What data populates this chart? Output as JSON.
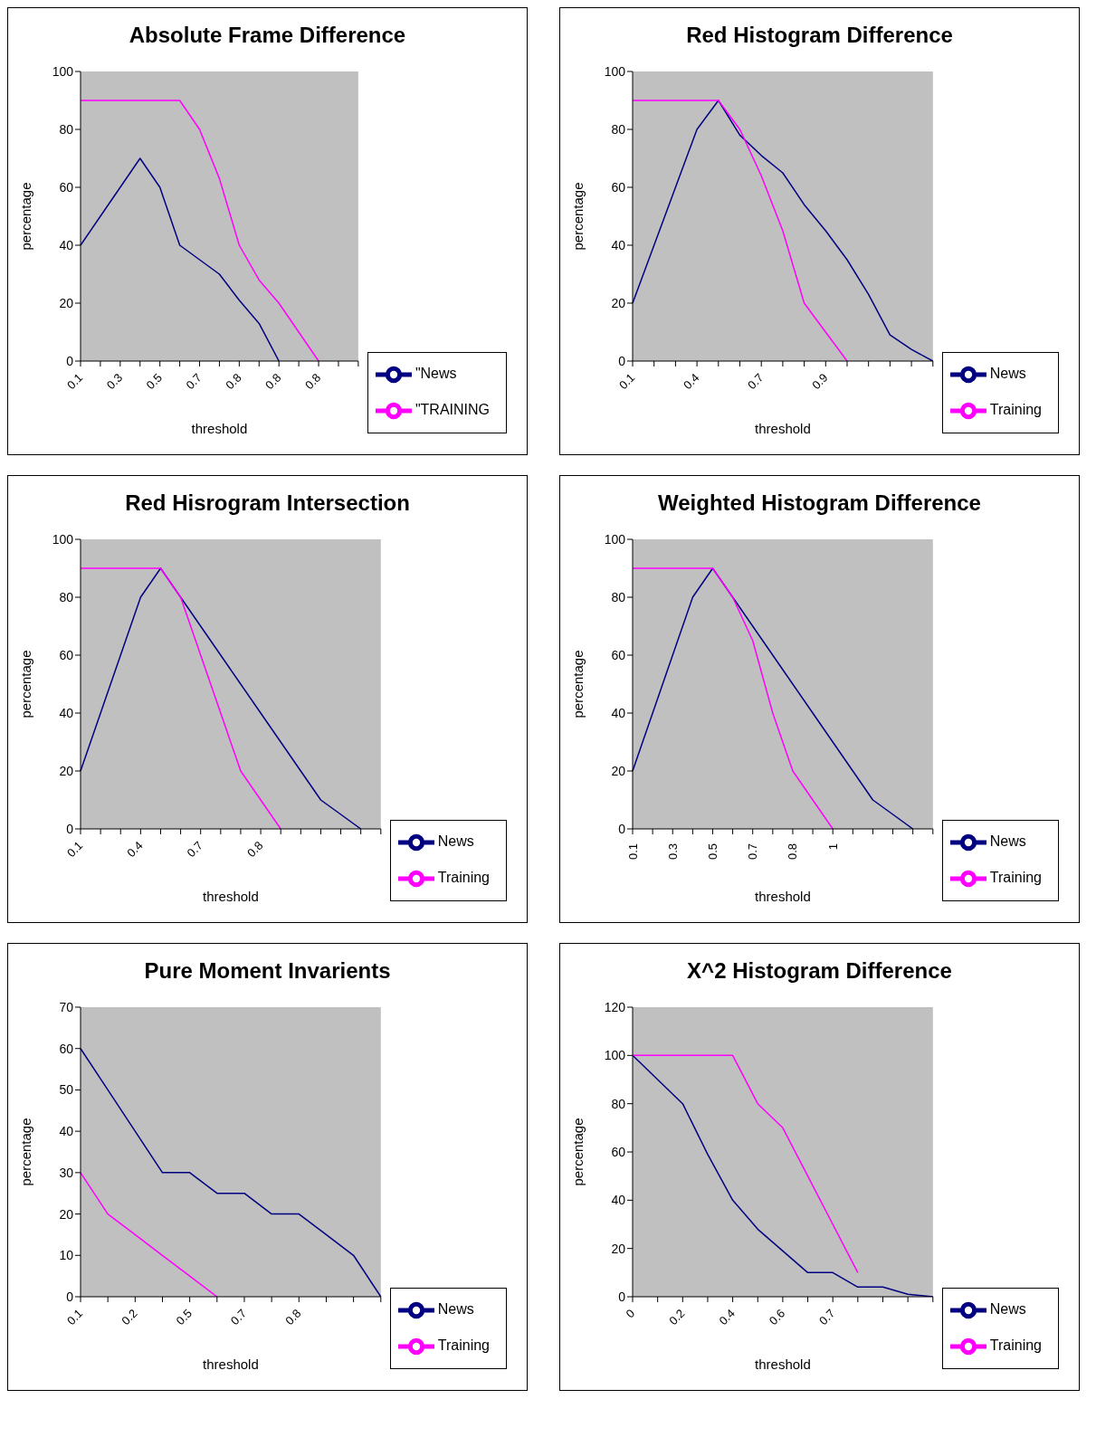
{
  "chart_data": [
    {
      "type": "line",
      "title": "Absolute Frame Difference",
      "xlabel": "threshold",
      "ylabel": "percentage",
      "categories": [
        "0.1",
        null,
        "0.3",
        null,
        "0.5",
        null,
        "0.7",
        null,
        "0.8",
        null,
        "0.8",
        null,
        "0.8",
        null,
        null
      ],
      "series": [
        {
          "name": "\"News",
          "color": "#000080",
          "values": [
            40,
            50,
            60,
            70,
            60,
            40,
            35,
            30,
            21,
            13,
            0,
            null,
            null,
            null,
            null
          ]
        },
        {
          "name": "\"TRAINING",
          "color": "#ff00ff",
          "values": [
            90,
            90,
            90,
            90,
            90,
            90,
            80,
            63,
            40,
            28,
            20,
            10,
            0,
            null,
            null
          ]
        }
      ],
      "ylim": [
        0,
        100
      ],
      "yticks": [
        0,
        20,
        40,
        60,
        80,
        100
      ],
      "grid": false,
      "legend": "bottom right"
    },
    {
      "type": "line",
      "title": "Red Histogram Difference",
      "xlabel": "threshold",
      "ylabel": "percentage",
      "categories": [
        "0.1",
        null,
        null,
        "0.4",
        null,
        null,
        "0.7",
        null,
        null,
        "0.9",
        null,
        null,
        null,
        null,
        null
      ],
      "series": [
        {
          "name": "News",
          "color": "#000080",
          "values": [
            20,
            40,
            60,
            80,
            90,
            78,
            71,
            65,
            54,
            45,
            35,
            23,
            9,
            4,
            0
          ]
        },
        {
          "name": "Training",
          "color": "#ff00ff",
          "values": [
            90,
            90,
            90,
            90,
            90,
            80,
            64,
            45,
            20,
            10,
            0,
            null,
            null,
            null,
            null
          ]
        }
      ],
      "ylim": [
        0,
        100
      ],
      "yticks": [
        0,
        20,
        40,
        60,
        80,
        100
      ],
      "grid": false,
      "legend": "bottom right"
    },
    {
      "type": "line",
      "title": "Red Hisrogram Intersection",
      "xlabel": "threshold",
      "ylabel": "percentage",
      "categories": [
        "0.1",
        null,
        null,
        "0.4",
        null,
        null,
        "0.7",
        null,
        null,
        "0.8",
        null,
        null,
        null,
        null,
        null,
        null
      ],
      "series": [
        {
          "name": "News",
          "color": "#000080",
          "values": [
            20,
            40,
            60,
            80,
            90,
            80,
            70,
            60,
            50,
            40,
            30,
            20,
            10,
            5,
            0,
            null
          ]
        },
        {
          "name": "Training",
          "color": "#ff00ff",
          "values": [
            90,
            90,
            90,
            90,
            90,
            80,
            60,
            40,
            20,
            10,
            0,
            null,
            null,
            null,
            null,
            null
          ]
        }
      ],
      "ylim": [
        0,
        100
      ],
      "yticks": [
        0,
        20,
        40,
        60,
        80,
        100
      ],
      "grid": false,
      "legend": "bottom right"
    },
    {
      "type": "line",
      "title": "Weighted Histogram Difference",
      "xlabel": "threshold",
      "ylabel": "percentage",
      "categories": [
        "0.1",
        null,
        "0.3",
        null,
        "0.5",
        null,
        "0.7",
        null,
        "0.8",
        null,
        "1",
        null,
        null,
        null,
        null,
        null
      ],
      "series": [
        {
          "name": "News",
          "color": "#000080",
          "values": [
            20,
            40,
            60,
            80,
            90,
            80,
            70,
            60,
            50,
            40,
            30,
            20,
            10,
            5,
            0,
            null
          ]
        },
        {
          "name": "Training",
          "color": "#ff00ff",
          "values": [
            90,
            90,
            90,
            90,
            90,
            80,
            65,
            40,
            20,
            10,
            0,
            null,
            null,
            null,
            null,
            null
          ]
        }
      ],
      "ylim": [
        0,
        100
      ],
      "yticks": [
        0,
        20,
        40,
        60,
        80,
        100
      ],
      "grid": false,
      "legend": "bottom right"
    },
    {
      "type": "line",
      "title": "Pure Moment Invarients",
      "xlabel": "threshold",
      "ylabel": "percentage",
      "categories": [
        "0.1",
        null,
        "0.2",
        null,
        "0.5",
        null,
        "0.7",
        null,
        "0.8",
        null,
        null,
        null
      ],
      "series": [
        {
          "name": "News",
          "color": "#000080",
          "values": [
            60,
            50,
            40,
            30,
            30,
            25,
            25,
            20,
            20,
            15,
            10,
            0
          ]
        },
        {
          "name": "Training",
          "color": "#ff00ff",
          "values": [
            30,
            20,
            15,
            10,
            5,
            0,
            null,
            null,
            null,
            null,
            null,
            null
          ]
        }
      ],
      "ylim": [
        0,
        70
      ],
      "yticks": [
        0,
        10,
        20,
        30,
        40,
        50,
        60,
        70
      ],
      "grid": false,
      "legend": "bottom right"
    },
    {
      "type": "line",
      "title": "X^2 Histogram Difference",
      "xlabel": "threshold",
      "ylabel": "percentage",
      "categories": [
        "0",
        null,
        "0.2",
        null,
        "0.4",
        null,
        "0.6",
        null,
        "0.7",
        null,
        null,
        null,
        null
      ],
      "series": [
        {
          "name": "News",
          "color": "#000080",
          "values": [
            100,
            90,
            80,
            59,
            40,
            28,
            19,
            10,
            10,
            4,
            4,
            1,
            0
          ]
        },
        {
          "name": "Training",
          "color": "#ff00ff",
          "values": [
            100,
            100,
            100,
            100,
            100,
            80,
            70,
            50,
            30,
            10,
            null,
            null,
            null
          ]
        }
      ],
      "ylim": [
        0,
        120
      ],
      "yticks": [
        0,
        20,
        40,
        60,
        80,
        100,
        120
      ],
      "grid": false,
      "legend": "bottom right"
    }
  ]
}
